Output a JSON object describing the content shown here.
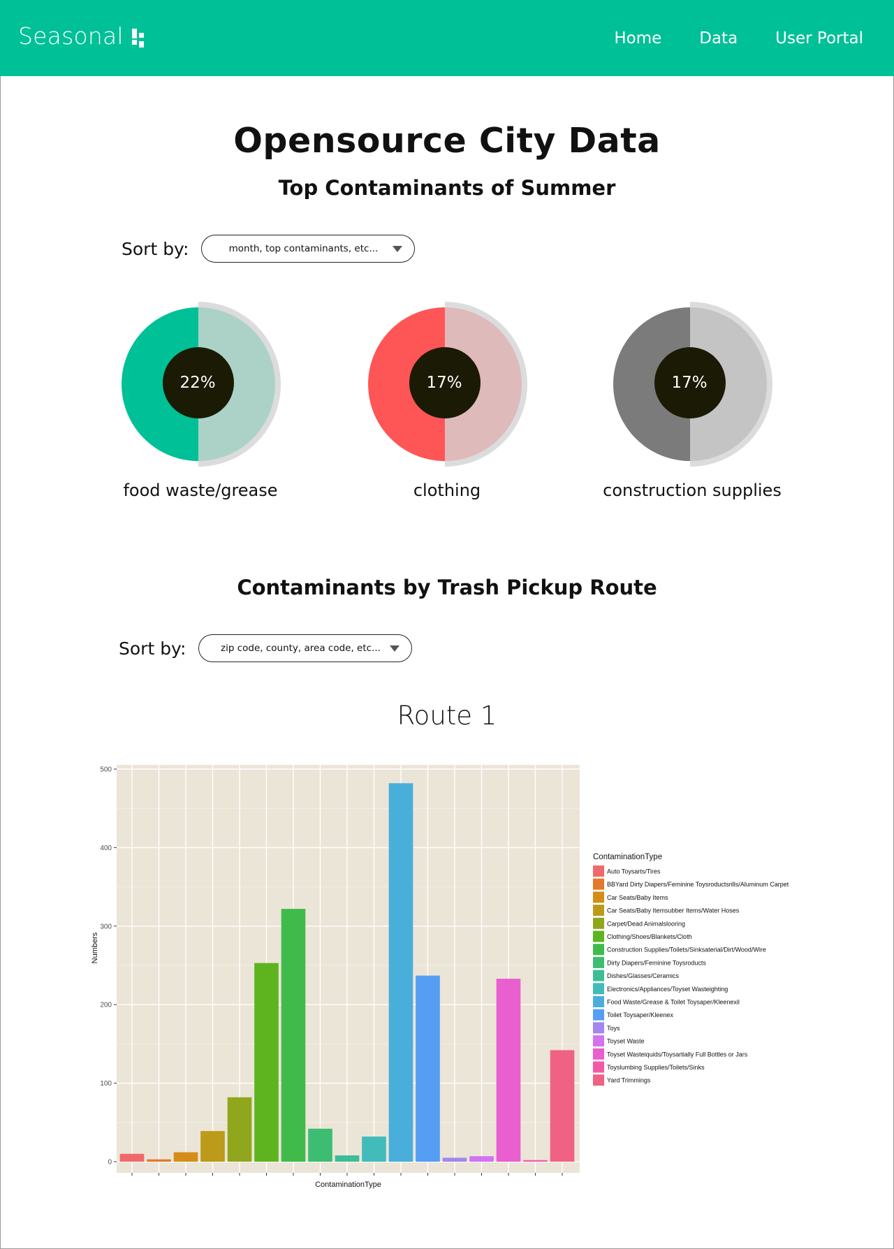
{
  "colors": {
    "brand": "#00c097",
    "donut_dark_center": "#1a1a05"
  },
  "navbar": {
    "brand_name": "Seasonal",
    "links": [
      {
        "label": "Home"
      },
      {
        "label": "Data"
      },
      {
        "label": "User Portal"
      }
    ]
  },
  "page": {
    "title": "Opensource City Data"
  },
  "summer": {
    "title": "Top Contaminants of Summer",
    "sort_label": "Sort by:",
    "sort_value": "month, top contaminants, etc...",
    "donuts": [
      {
        "percent": 22,
        "percent_label": "22%",
        "label": "food waste/grease",
        "main_color": "#00c097",
        "light_color": "#acd2c8"
      },
      {
        "percent": 17,
        "percent_label": "17%",
        "label": "clothing",
        "main_color": "#fe5656",
        "light_color": "#dfbaba"
      },
      {
        "percent": 17,
        "percent_label": "17%",
        "label": "construction supplies",
        "main_color": "#7b7b7b",
        "light_color": "#c4c4c4"
      }
    ]
  },
  "routes": {
    "title": "Contaminants by Trash Pickup Route",
    "sort_label": "Sort by:",
    "sort_value": "zip code, county, area code, etc...",
    "route_title": "Route 1"
  },
  "chart_data": {
    "type": "bar",
    "xlabel": "ContaminationType",
    "ylabel": "Numbers",
    "ylim": [
      0,
      500
    ],
    "yticks": [
      0,
      100,
      200,
      300,
      400,
      500
    ],
    "legend_title": "ContaminationType",
    "legend_position": "right",
    "grid": true,
    "categories": [
      "Auto Toysarts/Tires",
      "BBYard Dirty Diapers/Feminine Toysroductsrills/Aluminum Carpet",
      "Car Seats/Baby Items",
      "Car Seats/Baby Itemsubber Items/Water Hoses",
      "Carpet/Dead Animalslooring",
      "Clothing/Shoes/Blankets/Cloth",
      "Construction Supplies/Toilets/Sinksaterial/Dirt/Wood/Wire",
      "Dirty Diapers/Feminine Toysroducts",
      "Dishes/Glasses/Ceramics",
      "Electronics/Appliances/Toyset Wasteighting",
      "Food Waste/Grease & Toilet Toysaper/Kleenexil",
      "Toilet Toysaper/Kleenex",
      "Toys",
      "Toyset Waste",
      "Toyset Wasteiquids/Toysartially Full Bottles or Jars",
      "Toyslumbing Supplies/Toilets/Sinks",
      "Yard Trimmings"
    ],
    "values": [
      10,
      3,
      12,
      39,
      82,
      253,
      322,
      42,
      8,
      32,
      482,
      237,
      5,
      7,
      233,
      2,
      142
    ],
    "colors": [
      "#f0696a",
      "#e27a2b",
      "#d58d18",
      "#bb9b19",
      "#90a61d",
      "#5db41f",
      "#40bb4b",
      "#3dbd72",
      "#3dbd96",
      "#42bbbb",
      "#4aaedb",
      "#559ef4",
      "#a386ee",
      "#d273f2",
      "#e95fcf",
      "#f35aa5",
      "#f06283"
    ]
  }
}
